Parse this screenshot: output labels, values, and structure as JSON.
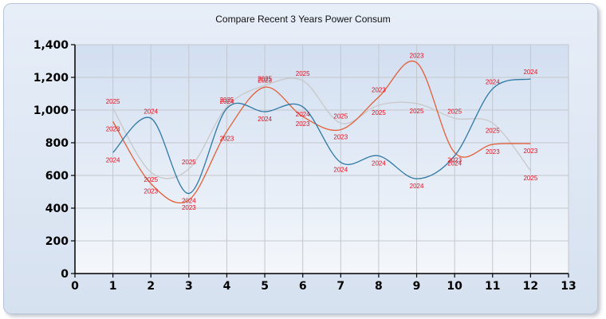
{
  "chart_data": {
    "type": "line",
    "title": "Compare Recent 3 Years Power Consum",
    "xlabel": "",
    "ylabel": "",
    "xlim": [
      0,
      13
    ],
    "ylim": [
      0,
      1400
    ],
    "x_ticks": [
      0,
      1,
      2,
      3,
      4,
      5,
      6,
      7,
      8,
      9,
      10,
      11,
      12,
      13
    ],
    "y_ticks": [
      0,
      200,
      400,
      600,
      800,
      1000,
      1200,
      1400
    ],
    "y_tick_labels": [
      "0",
      "200",
      "400",
      "600",
      "800",
      "1,000",
      "1,200",
      "1,400"
    ],
    "grid": true,
    "legend": "none",
    "curve": "smooth",
    "x": [
      1,
      2,
      3,
      4,
      5,
      6,
      7,
      8,
      9,
      10,
      11,
      12
    ],
    "series": [
      {
        "label": "2024",
        "color": "#2e78a5",
        "values": [
          740,
          950,
          490,
          1010,
          990,
          1020,
          680,
          720,
          580,
          720,
          1130,
          1190
        ]
      },
      {
        "label": "2023",
        "color": "#e3603a",
        "values": [
          930,
          550,
          450,
          870,
          1140,
          960,
          880,
          1080,
          1290,
          740,
          790,
          795
        ]
      },
      {
        "label": "2025",
        "color": "#c8c8c8",
        "values": [
          1010,
          620,
          640,
          1020,
          1150,
          1180,
          920,
          1030,
          1040,
          950,
          920,
          630
        ]
      }
    ]
  }
}
